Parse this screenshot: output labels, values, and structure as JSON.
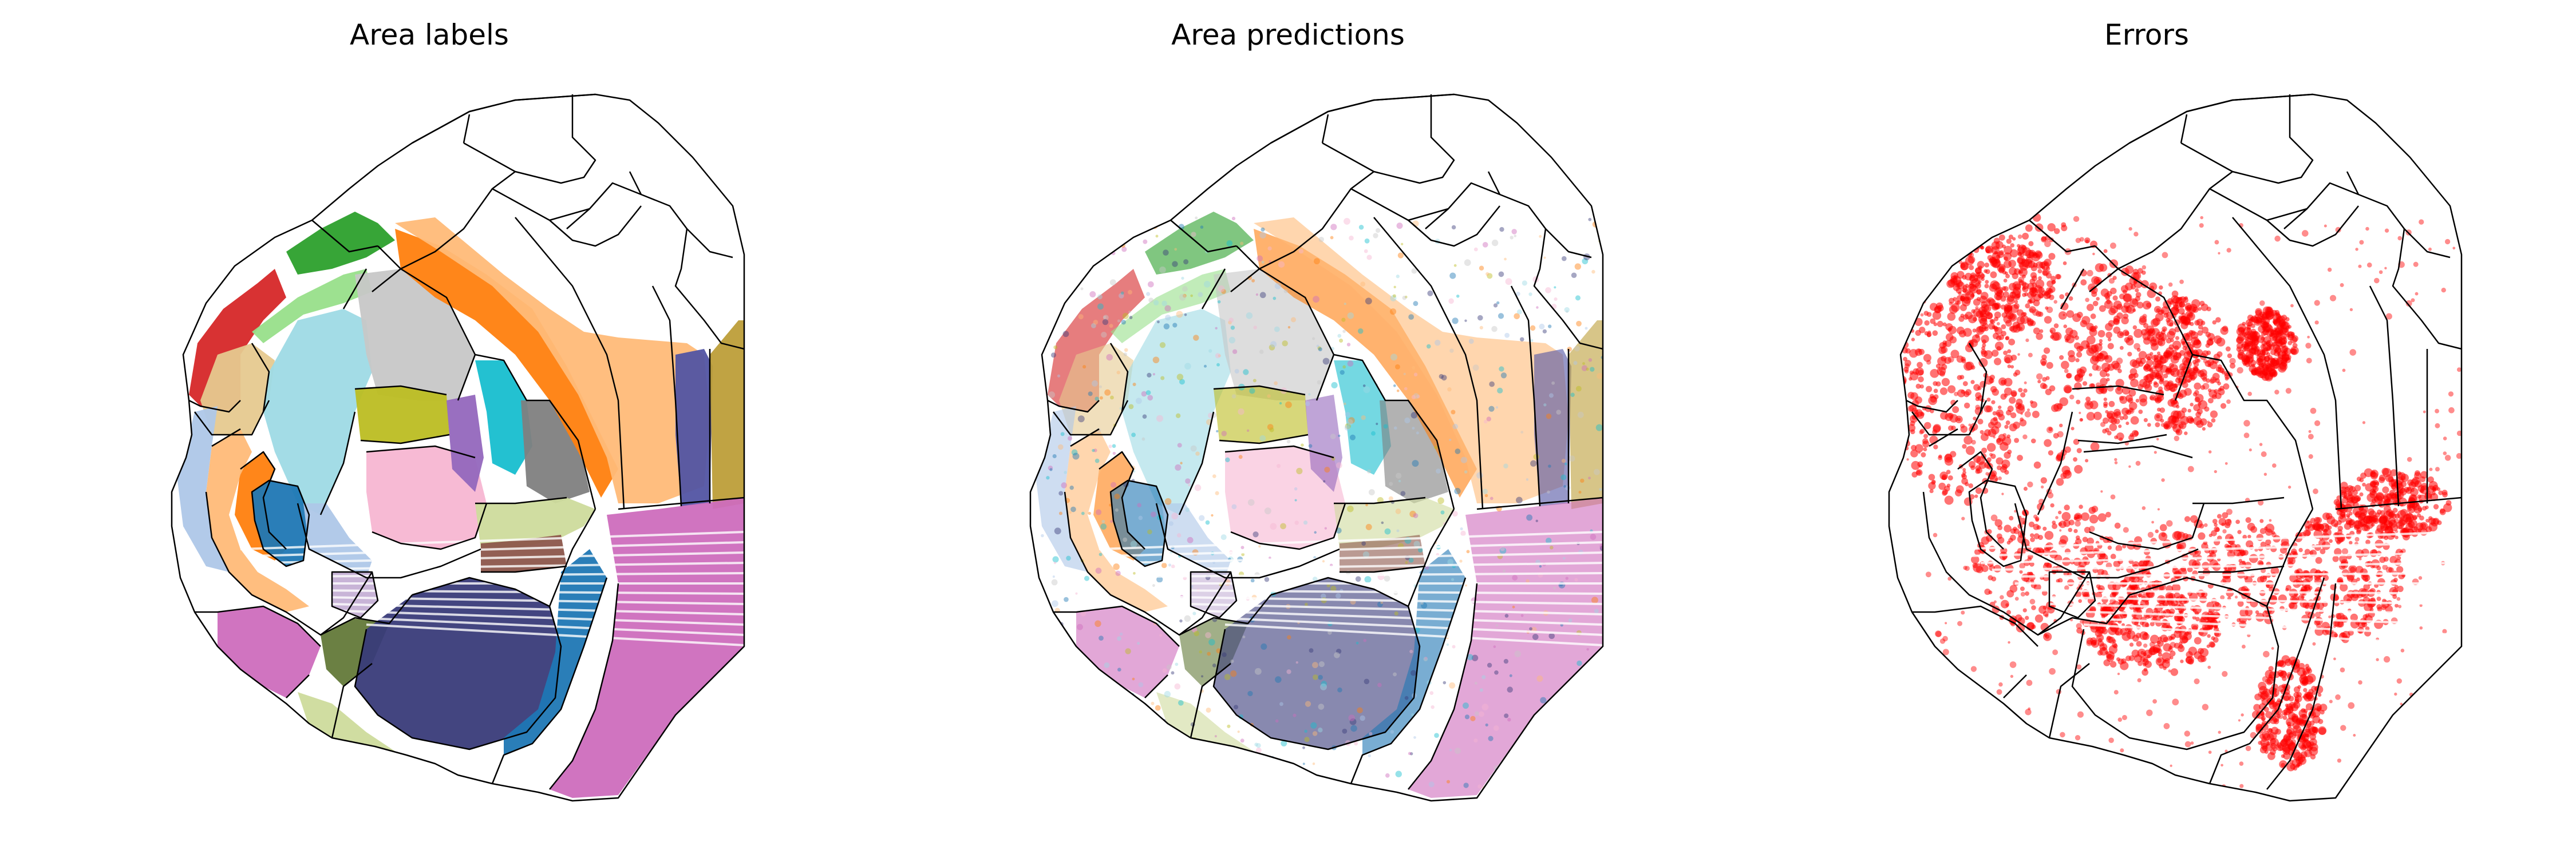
{
  "figure": {
    "panels": [
      {
        "title": "Area labels",
        "mode": "labels"
      },
      {
        "title": "Area predictions",
        "mode": "predictions"
      },
      {
        "title": "Errors",
        "mode": "errors"
      }
    ],
    "colors": {
      "outline": "#000000",
      "error": "#ff0000",
      "red": "#d62728",
      "green": "#2ca02c",
      "light_green": "#98df8a",
      "tan": "#e6c98f",
      "light_blue": "#9edae5",
      "gray": "#c7c7c7",
      "olive": "#bcbd22",
      "cyan": "#17becf",
      "dark_gray": "#7f7f7f",
      "orange": "#ff7f0e",
      "light_orange": "#ffbb78",
      "navy": "#393b79",
      "purple": "#5254a3",
      "pink": "#f7b6d2",
      "magenta": "#ce6dbd",
      "blue": "#1f77b4",
      "sky": "#aec7e8",
      "brown": "#8c564b",
      "dark_olive": "#637939",
      "yellow_green": "#cedb9c",
      "mauve": "#c5b0d5",
      "khaki": "#bd9e39",
      "violet": "#9467bd"
    }
  }
}
